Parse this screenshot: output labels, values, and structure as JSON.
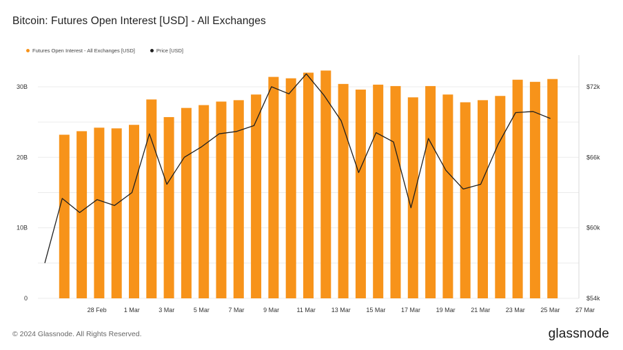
{
  "header": {
    "title": "Bitcoin: Futures Open Interest [USD] - All Exchanges"
  },
  "legend": {
    "items": [
      {
        "label": "Futures Open Interest - All Exchanges [USD]",
        "color": "#f7931a"
      },
      {
        "label": "Price [USD]",
        "color": "#1f1f1f"
      }
    ]
  },
  "footer": {
    "copyright": "© 2024 Glassnode. All Rights Reserved.",
    "brand": "glassnode"
  },
  "colors": {
    "bar": "#f7931a",
    "line": "#1f1f1f",
    "grid": "#ebebeb"
  },
  "chart_data": {
    "type": "bar",
    "title": "Bitcoin: Futures Open Interest [USD] - All Exchanges",
    "x": [
      "26 Feb",
      "27 Feb",
      "28 Feb",
      "29 Feb",
      "1 Mar",
      "2 Mar",
      "3 Mar",
      "4 Mar",
      "5 Mar",
      "6 Mar",
      "7 Mar",
      "8 Mar",
      "9 Mar",
      "10 Mar",
      "11 Mar",
      "12 Mar",
      "13 Mar",
      "14 Mar",
      "15 Mar",
      "16 Mar",
      "17 Mar",
      "18 Mar",
      "19 Mar",
      "20 Mar",
      "21 Mar",
      "22 Mar",
      "23 Mar",
      "24 Mar",
      "25 Mar",
      "26 Mar",
      "27 Mar"
    ],
    "x_tick_labels": [
      "28 Feb",
      "1 Mar",
      "3 Mar",
      "5 Mar",
      "7 Mar",
      "9 Mar",
      "11 Mar",
      "13 Mar",
      "15 Mar",
      "17 Mar",
      "19 Mar",
      "21 Mar",
      "23 Mar",
      "25 Mar",
      "27 Mar"
    ],
    "series": [
      {
        "name": "Futures Open Interest - All Exchanges [USD]",
        "type": "bar",
        "axis": "left",
        "values": [
          null,
          23.2,
          23.7,
          24.2,
          24.1,
          24.6,
          28.2,
          25.7,
          27.0,
          27.4,
          27.9,
          28.1,
          28.9,
          31.4,
          31.2,
          32.0,
          32.3,
          30.4,
          29.6,
          30.3,
          30.1,
          28.5,
          30.1,
          28.9,
          27.8,
          28.1,
          28.7,
          31.0,
          30.7,
          31.1,
          null
        ]
      },
      {
        "name": "Price [USD]",
        "type": "line",
        "axis": "right",
        "values": [
          57000,
          62500,
          61300,
          62400,
          61900,
          63000,
          68000,
          63700,
          66000,
          66900,
          68000,
          68200,
          68700,
          72000,
          71400,
          73100,
          71300,
          69100,
          64700,
          68100,
          67300,
          61700,
          67600,
          64900,
          63300,
          63700,
          67100,
          69800,
          69900,
          69300,
          null
        ]
      }
    ],
    "y_left": {
      "ticks": [
        "0",
        "10B",
        "20B",
        "30B"
      ],
      "lim": [
        0,
        34
      ]
    },
    "y_right": {
      "ticks": [
        "$54k",
        "$60k",
        "$66k",
        "$72k"
      ],
      "lim": [
        54000,
        74400
      ]
    },
    "grid": true,
    "legend_position": "top-left"
  }
}
